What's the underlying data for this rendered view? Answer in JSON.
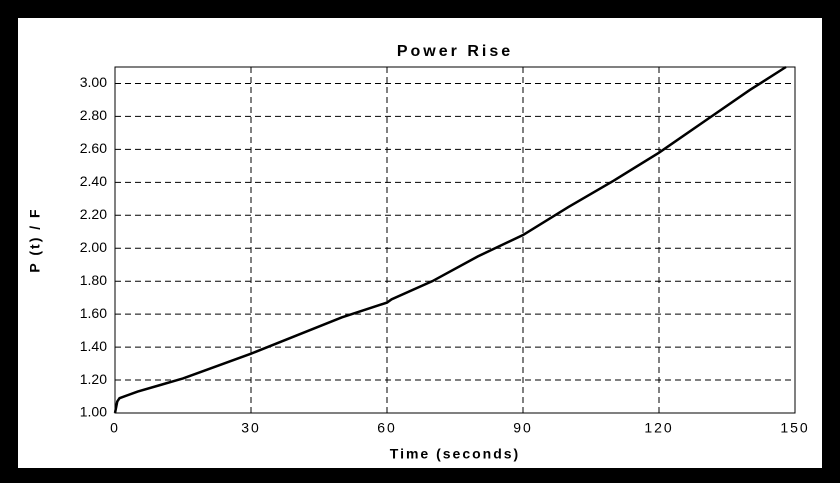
{
  "chart_data": {
    "type": "line",
    "title": "Power Rise",
    "x_label": "Time (seconds)",
    "y_label": "P (t) / F",
    "x": [
      0,
      0.5,
      1,
      5,
      10,
      15,
      20,
      30,
      40,
      50,
      60,
      61,
      70,
      80,
      90,
      100,
      110,
      120,
      130,
      140,
      148
    ],
    "series": [
      {
        "name": "P(t)",
        "color": "#000000",
        "values": [
          1.0,
          1.07,
          1.09,
          1.13,
          1.17,
          1.21,
          1.26,
          1.36,
          1.47,
          1.58,
          1.67,
          1.69,
          1.8,
          1.95,
          2.08,
          2.25,
          2.41,
          2.58,
          2.77,
          2.96,
          3.1
        ]
      }
    ],
    "xlim": [
      0,
      150
    ],
    "xticks": [
      0,
      30,
      60,
      90,
      120,
      150
    ],
    "ylim": [
      1.0,
      3.1
    ],
    "yticks": [
      {
        "value": 1.0,
        "label": "1.00"
      },
      {
        "value": 1.2,
        "label": "1.20"
      },
      {
        "value": 1.4,
        "label": "1.40"
      },
      {
        "value": 1.6,
        "label": "1.60"
      },
      {
        "value": 1.8,
        "label": "1.80"
      },
      {
        "value": 2.0,
        "label": "2.00"
      },
      {
        "value": 2.2,
        "label": "2.20"
      },
      {
        "value": 2.4,
        "label": "2.40"
      },
      {
        "value": 2.6,
        "label": "2.60"
      },
      {
        "value": 2.8,
        "label": "2.80"
      },
      {
        "value": 3.0,
        "label": "3.00"
      }
    ],
    "grid": true
  }
}
